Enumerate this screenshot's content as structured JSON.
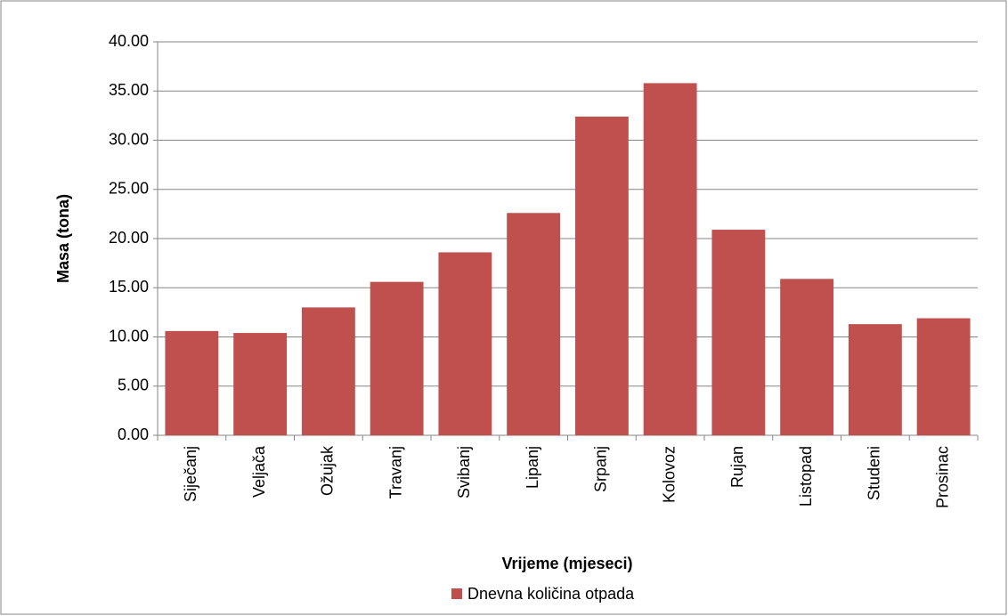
{
  "chart_data": {
    "type": "bar",
    "x_label": "Vrijeme (mjeseci)",
    "y_label": "Masa (tona)",
    "categories": [
      "Siječanj",
      "Veljača",
      "Ožujak",
      "Travanj",
      "Svibanj",
      "Lipanj",
      "Srpanj",
      "Kolovoz",
      "Rujan",
      "Listopad",
      "Studeni",
      "Prosinac"
    ],
    "series": [
      {
        "name": "Dnevna količina otpada",
        "color": "#c0504d",
        "values": [
          10.6,
          10.4,
          13.0,
          15.6,
          18.6,
          22.6,
          32.4,
          35.8,
          20.9,
          15.9,
          11.3,
          11.9
        ]
      }
    ],
    "ylim": [
      0,
      40
    ],
    "yticks": [
      {
        "value": 0,
        "label": "0.00"
      },
      {
        "value": 5,
        "label": "5.00"
      },
      {
        "value": 10,
        "label": "10.00"
      },
      {
        "value": 15,
        "label": "15.00"
      },
      {
        "value": 20,
        "label": "20.00"
      },
      {
        "value": 25,
        "label": "25.00"
      },
      {
        "value": 30,
        "label": "30.00"
      },
      {
        "value": 35,
        "label": "35.00"
      },
      {
        "value": 40,
        "label": "40.00"
      }
    ],
    "grid": true,
    "legend": "bottom"
  }
}
